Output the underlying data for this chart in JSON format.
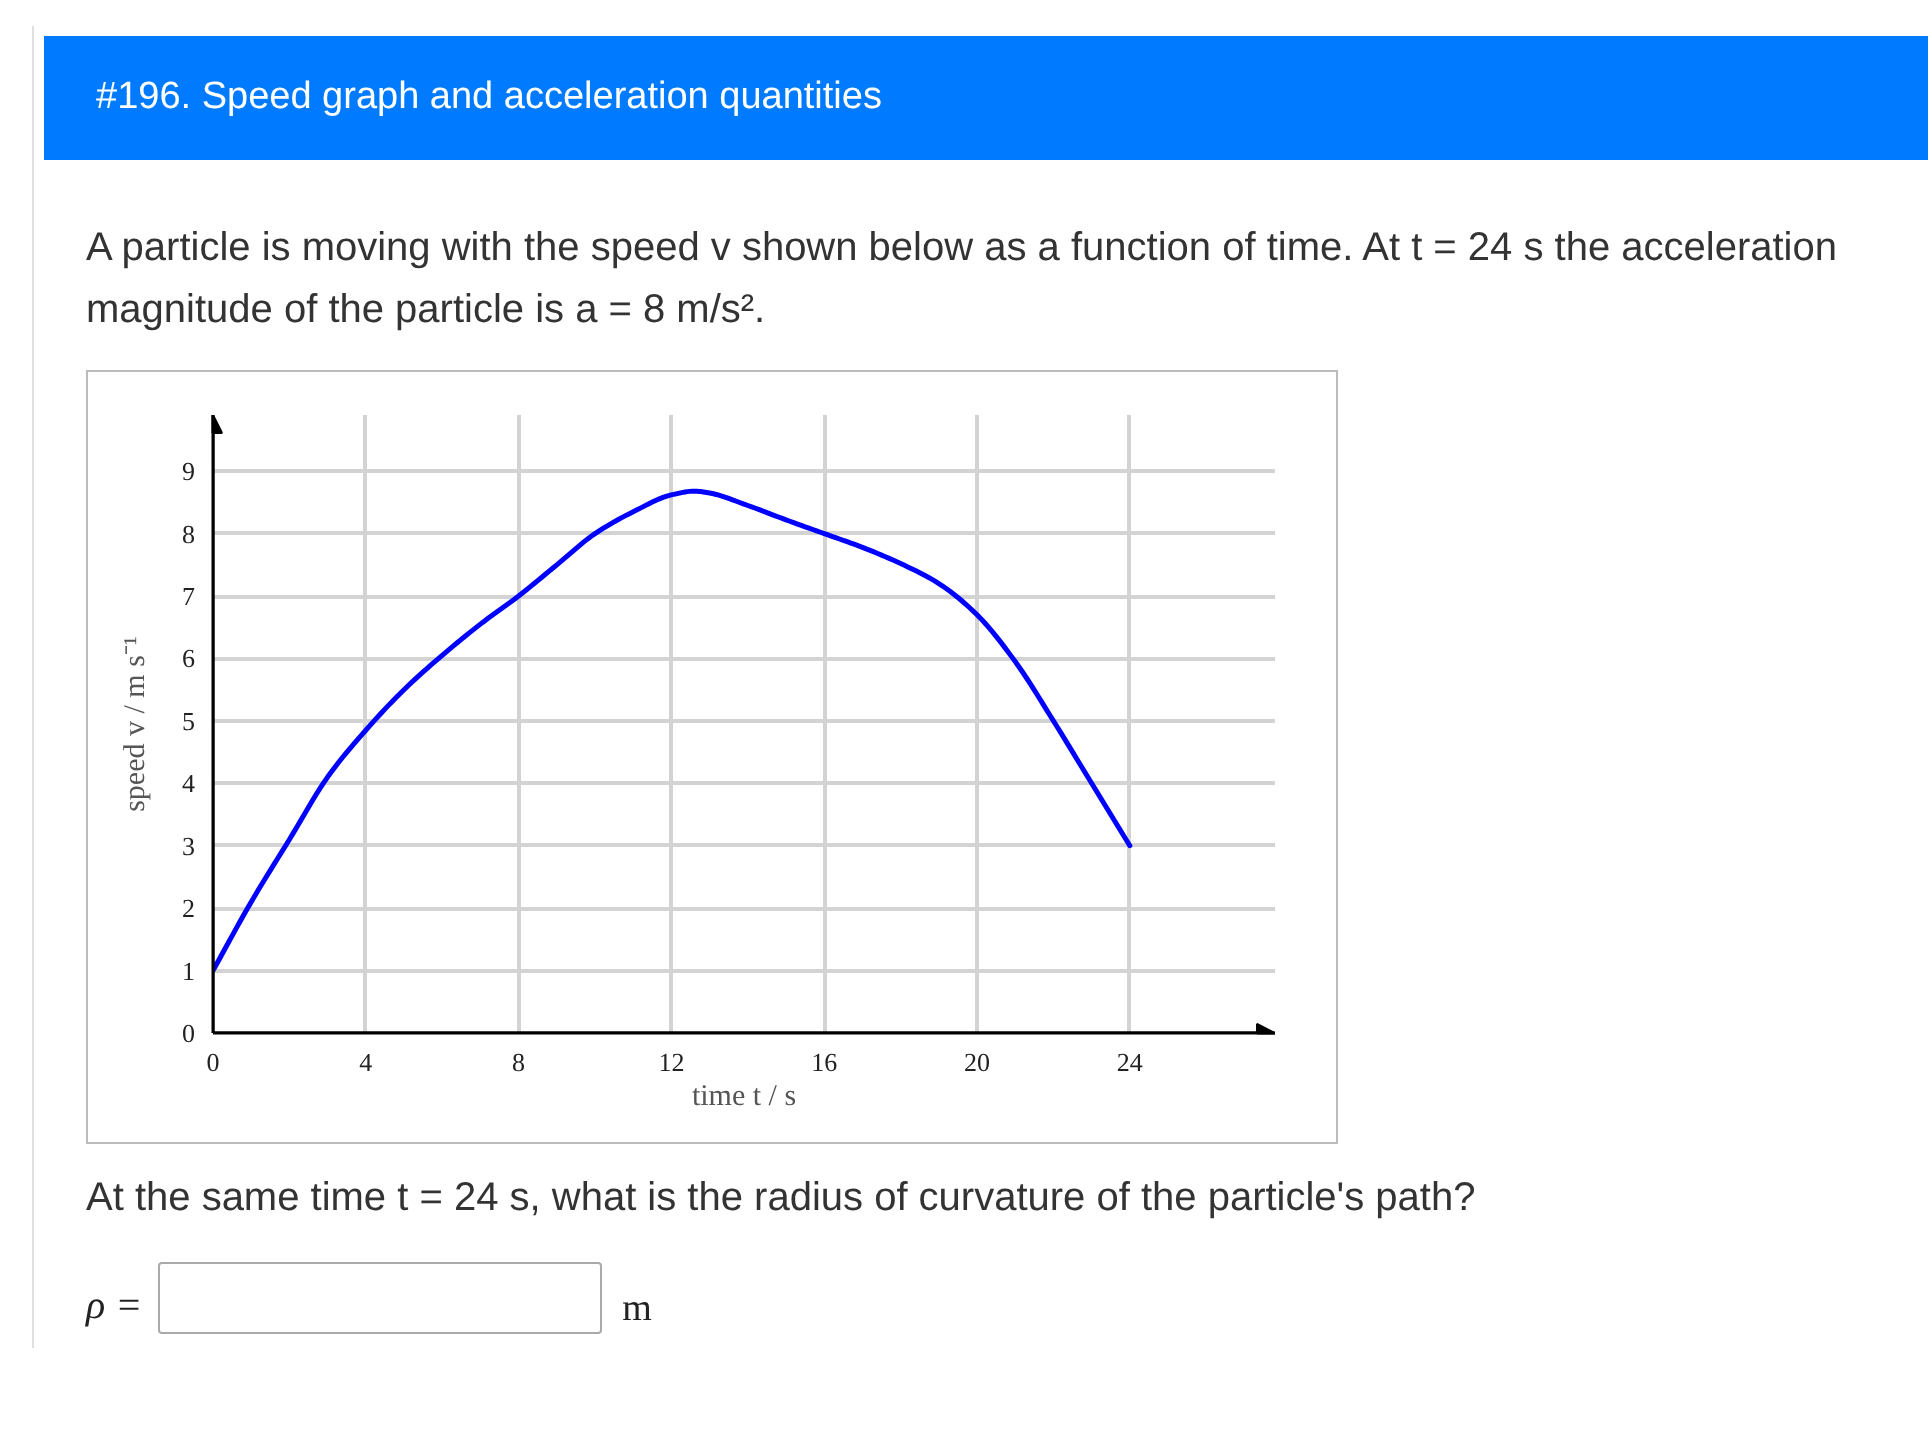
{
  "chart_data": {
    "type": "line",
    "title": "#196. Speed graph and acceleration quantities",
    "annotations": [
      "A particle is moving with the speed v shown below as a function of time. At t = 24 s the acceleration magnitude of the particle is a = 8 m/s².",
      "At the same time t = 24 s, what is the radius of curvature of the particle's path?",
      "ρ =",
      "m"
    ],
    "xlabel": "time t / s",
    "ylabel": "speed v / m s⁻¹",
    "x": [
      0,
      1,
      2,
      3,
      4,
      5,
      6,
      7,
      8,
      9,
      10,
      11,
      12,
      12.6,
      13,
      14,
      15,
      16,
      17,
      18,
      19,
      20,
      21,
      22,
      23,
      24
    ],
    "values": [
      1.0,
      2.1,
      3.1,
      4.1,
      4.85,
      5.5,
      6.05,
      6.55,
      7.0,
      7.5,
      8.0,
      8.35,
      8.62,
      8.68,
      8.65,
      8.45,
      8.22,
      8.0,
      7.78,
      7.52,
      7.2,
      6.7,
      5.95,
      5.0,
      4.0,
      3.0
    ],
    "color": "#0000ff",
    "xlim": [
      0,
      27.8
    ],
    "ylim": [
      0,
      9.9
    ],
    "xticks": [
      0,
      4,
      8,
      12,
      16,
      20,
      24
    ],
    "yticks": [
      0,
      1,
      2,
      3,
      4,
      5,
      6,
      7,
      8,
      9
    ],
    "grid": true
  }
}
